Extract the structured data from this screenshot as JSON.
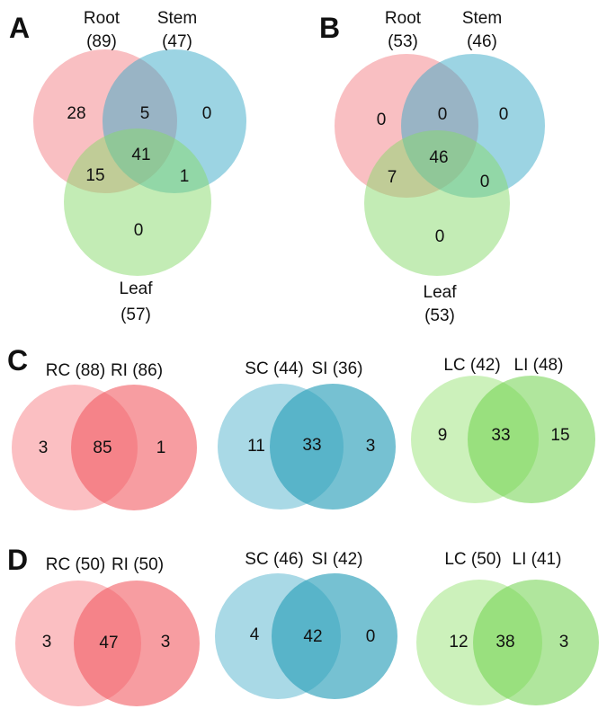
{
  "colors": {
    "root": "#f47f85",
    "stem": "#3aa9c8",
    "leaf": "#88d96c",
    "rc": "#f9a4a8",
    "ri": "#f25c63",
    "sc": "#6fc0d6",
    "si": "#2c9fba",
    "lc": "#bfeeaa",
    "li": "#6fd24c"
  },
  "panels": {
    "a": {
      "letter": "A",
      "root_name": "Root",
      "root_count": "(89)",
      "stem_name": "Stem",
      "stem_count": "(47)",
      "leaf_name": "Leaf",
      "leaf_count": "(57)",
      "regions": {
        "root_only": "28",
        "root_stem": "5",
        "stem_only": "0",
        "root_leaf": "15",
        "all_three": "41",
        "stem_leaf": "1",
        "leaf_only": "0"
      }
    },
    "b": {
      "letter": "B",
      "root_name": "Root",
      "root_count": "(53)",
      "stem_name": "Stem",
      "stem_count": "(46)",
      "leaf_name": "Leaf",
      "leaf_count": "(53)",
      "regions": {
        "root_only": "0",
        "root_stem": "0",
        "stem_only": "0",
        "root_leaf": "7",
        "all_three": "46",
        "stem_leaf": "0",
        "leaf_only": "0"
      }
    },
    "c": {
      "letter": "C",
      "root": {
        "left_label": "RC (88)",
        "right_label": "RI (86)",
        "left_only": "3",
        "both": "85",
        "right_only": "1"
      },
      "stem": {
        "left_label": "SC (44)",
        "right_label": "SI (36)",
        "left_only": "11",
        "both": "33",
        "right_only": "3"
      },
      "leaf": {
        "left_label": "LC (42)",
        "right_label": "LI (48)",
        "left_only": "9",
        "both": "33",
        "right_only": "15"
      }
    },
    "d": {
      "letter": "D",
      "root": {
        "left_label": "RC (50)",
        "right_label": "RI (50)",
        "left_only": "3",
        "both": "47",
        "right_only": "3"
      },
      "stem": {
        "left_label": "SC (46)",
        "right_label": "SI (42)",
        "left_only": "4",
        "both": "42",
        "right_only": "0"
      },
      "leaf": {
        "left_label": "LC (50)",
        "right_label": "LI (41)",
        "left_only": "12",
        "both": "38",
        "right_only": "3"
      }
    }
  }
}
